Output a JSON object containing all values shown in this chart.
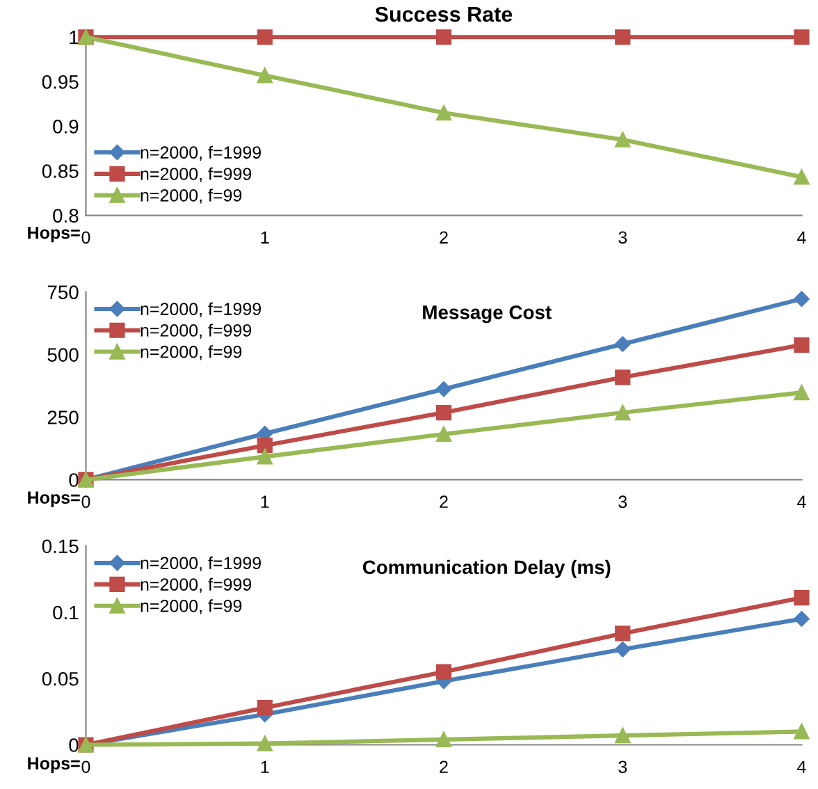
{
  "chart_data": [
    {
      "type": "line",
      "title": "Success Rate",
      "xlabel": "Hops=",
      "categories": [
        "0",
        "1",
        "2",
        "3",
        "4"
      ],
      "ylim": [
        0.8,
        1
      ],
      "yticks": [
        {
          "value": 0.8,
          "label": "0.8"
        },
        {
          "value": 0.85,
          "label": "0.85"
        },
        {
          "value": 0.9,
          "label": "0.9"
        },
        {
          "value": 0.95,
          "label": "0.95"
        },
        {
          "value": 1,
          "label": "1"
        }
      ],
      "grid": false,
      "legend": "bottom left",
      "series": [
        {
          "name": "n=2000, f=1999",
          "color": "#4a7ebb",
          "marker": "diamond",
          "values": [
            null,
            null,
            null,
            null,
            null
          ]
        },
        {
          "name": "n=2000, f=999",
          "color": "#be4b48",
          "marker": "square",
          "values": [
            1,
            1,
            1,
            1,
            1
          ]
        },
        {
          "name": "n=2000, f=99",
          "color": "#98b954",
          "marker": "triangle",
          "values": [
            1,
            0.957,
            0.915,
            0.885,
            0.843
          ]
        }
      ]
    },
    {
      "type": "line",
      "title": "Message Cost",
      "xlabel": "Hops=",
      "categories": [
        "0",
        "1",
        "2",
        "3",
        "4"
      ],
      "ylim": [
        0,
        750
      ],
      "yticks": [
        0,
        250,
        500,
        750
      ],
      "grid": false,
      "legend": "top left",
      "series": [
        {
          "name": "n=2000, f=1999",
          "color": "#4a7ebb",
          "marker": "diamond",
          "values": [
            0,
            184,
            362,
            542,
            722
          ]
        },
        {
          "name": "n=2000, f=999",
          "color": "#be4b48",
          "marker": "square",
          "values": [
            0,
            137,
            268,
            409,
            538
          ]
        },
        {
          "name": "n=2000, f=99",
          "color": "#98b954",
          "marker": "triangle",
          "values": [
            0,
            92,
            182,
            268,
            348
          ]
        }
      ]
    },
    {
      "type": "line",
      "title": "Communication Delay (ms)",
      "xlabel": "Hops=",
      "categories": [
        "0",
        "1",
        "2",
        "3",
        "4"
      ],
      "ylim": [
        0,
        0.15
      ],
      "yticks": [
        0,
        0.05,
        0.1,
        0.15
      ],
      "grid": false,
      "legend": "top left",
      "series": [
        {
          "name": "n=2000, f=1999",
          "color": "#4a7ebb",
          "marker": "diamond",
          "values": [
            0,
            0.023,
            0.048,
            0.072,
            0.095
          ]
        },
        {
          "name": "n=2000, f=999",
          "color": "#be4b48",
          "marker": "square",
          "values": [
            0,
            0.028,
            0.055,
            0.084,
            0.111
          ]
        },
        {
          "name": "n=2000, f=99",
          "color": "#98b954",
          "marker": "triangle",
          "values": [
            0,
            0.001,
            0.004,
            0.007,
            0.01
          ]
        }
      ]
    }
  ]
}
